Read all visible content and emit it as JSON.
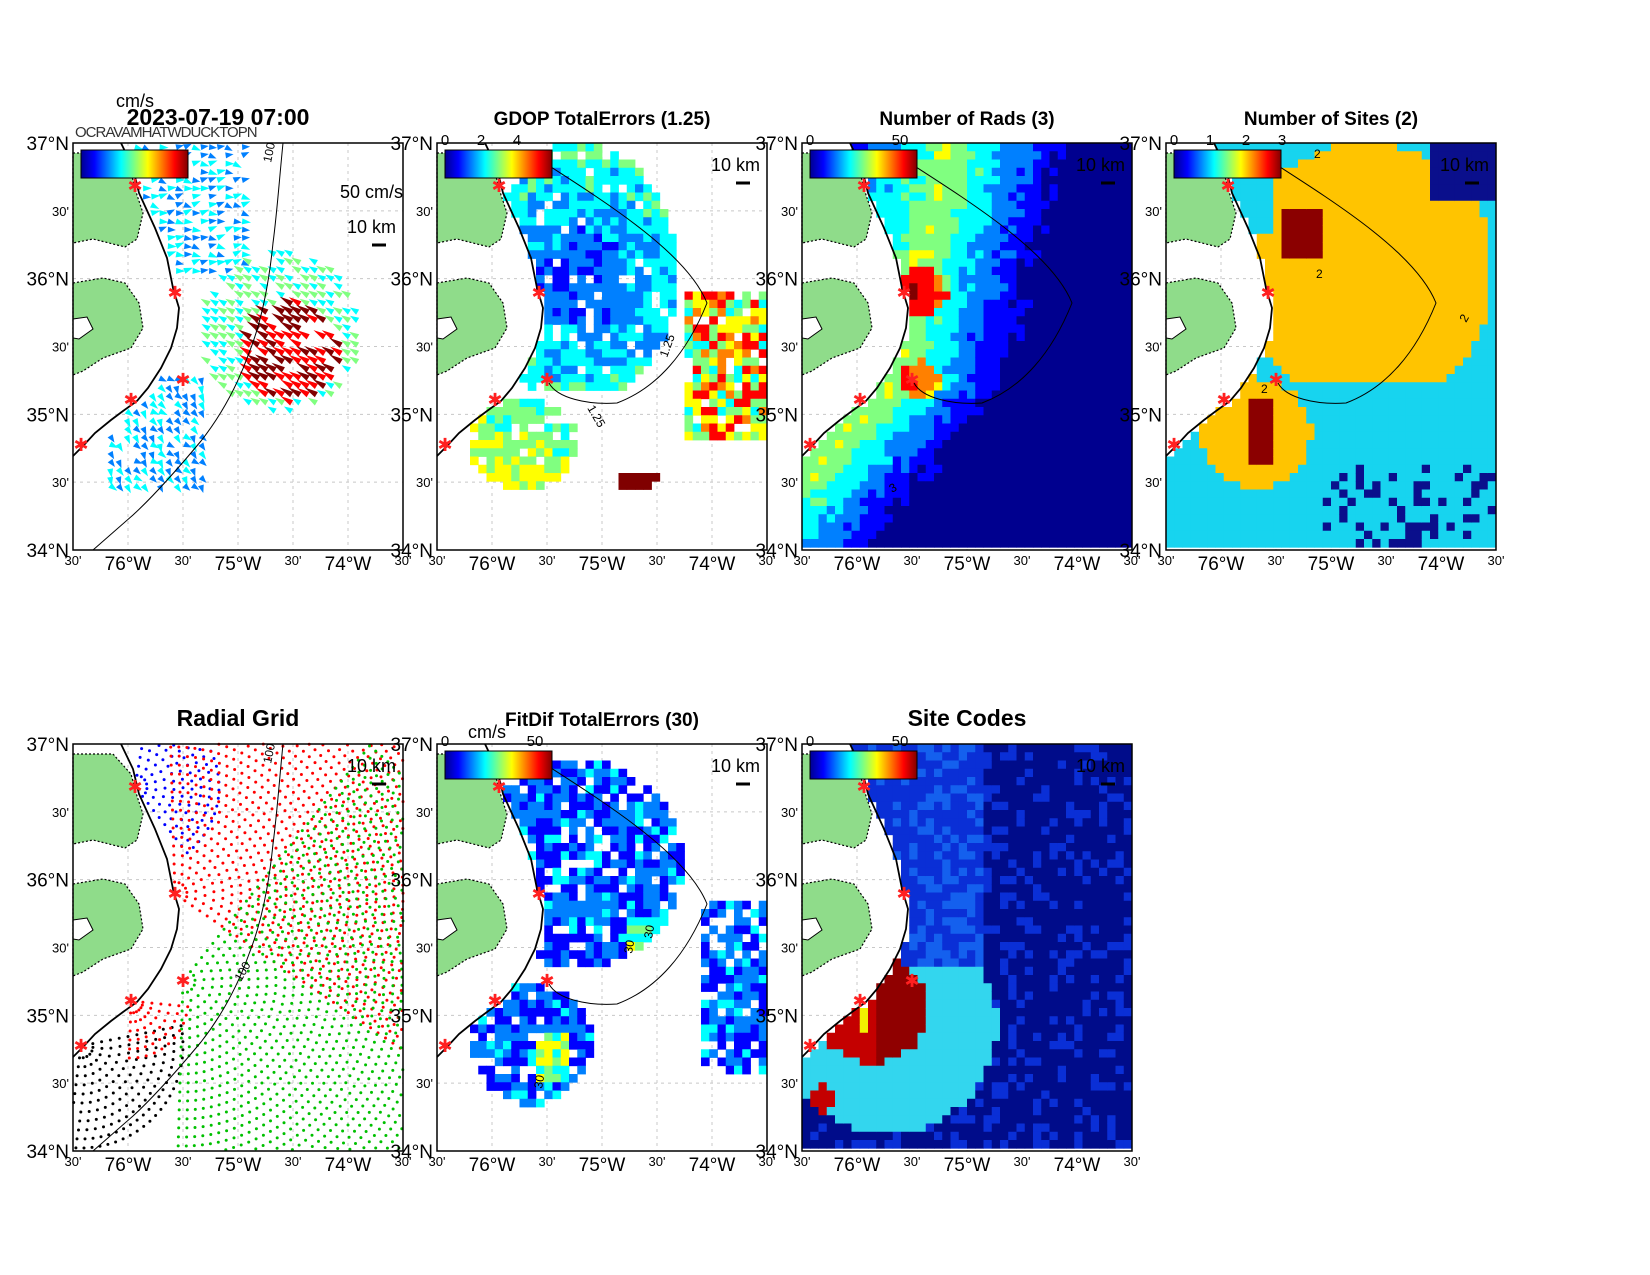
{
  "panels": [
    {
      "id": "p1",
      "title": "2023-07-19 07:00",
      "title_style": "large",
      "cb_unit": "cm/s",
      "cb_ticks": [],
      "scale_label": "10 km",
      "vector_label": "50 cm/s",
      "contour_label": "100",
      "overlap_text": "OCRAVAMHATWDUCKTOPN"
    },
    {
      "id": "p2",
      "title": "GDOP TotalErrors (1.25)",
      "title_style": "normal",
      "cb_unit": "",
      "cb_ticks": [
        "0",
        "2",
        "4"
      ],
      "scale_label": "10 km",
      "contour_label": "1.25"
    },
    {
      "id": "p3",
      "title": "Number of Rads (3)",
      "title_style": "normal",
      "cb_unit": "",
      "cb_ticks": [
        "0",
        "50"
      ],
      "scale_label": "10 km",
      "contour_label": "3"
    },
    {
      "id": "p4",
      "title": "Number of Sites (2)",
      "title_style": "normal",
      "cb_unit": "",
      "cb_ticks": [
        "0",
        "1",
        "2",
        "3"
      ],
      "scale_label": "10 km",
      "contour_label": "2"
    },
    {
      "id": "p5",
      "title": "Radial Grid",
      "title_style": "large",
      "cb_unit": "",
      "cb_ticks": [],
      "scale_label": "10 km",
      "contour_label": "100"
    },
    {
      "id": "p6",
      "title": "FitDif TotalErrors (30)",
      "title_style": "normal",
      "cb_unit": "cm/s",
      "cb_ticks": [
        "0",
        "50"
      ],
      "scale_label": "10 km",
      "contour_label": "30"
    },
    {
      "id": "p7",
      "title": "Site Codes",
      "title_style": "large",
      "cb_unit": "",
      "cb_ticks": [
        "0",
        "50"
      ],
      "scale_label": "10 km",
      "contour_label": ""
    }
  ],
  "axes": {
    "lat_labels": [
      "37°N",
      "30'",
      "36°N",
      "30'",
      "35°N",
      "30'",
      "34°N"
    ],
    "lon_labels": [
      "30'",
      "76°W",
      "30'",
      "75°W",
      "30'",
      "74°W",
      "30'"
    ]
  },
  "colors": {
    "land": "#8fdc8a",
    "jet": [
      "#00008f",
      "#0000ff",
      "#0080ff",
      "#00ffff",
      "#80ff80",
      "#ffff00",
      "#ff8000",
      "#ff0000",
      "#800000"
    ],
    "sites_levels": [
      "#0a0f8c",
      "#17d4ef",
      "#ffc400",
      "#8b0000"
    ],
    "codes_levels": [
      "#000c8a",
      "#0a2fd6",
      "#1460ee",
      "#33d6ee",
      "#c40000",
      "#900000",
      "#f2f200"
    ],
    "grid_sites": [
      "#000000",
      "#ff0000",
      "#0000ff",
      "#00c000"
    ],
    "site_marker": "#ff2020"
  }
}
